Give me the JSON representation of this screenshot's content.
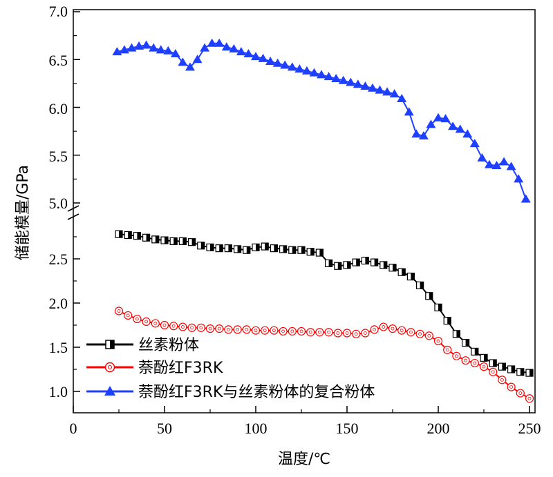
{
  "chart_data": {
    "type": "line",
    "xlabel": "温度/℃",
    "ylabel": "储能模量/GPa",
    "xlim": [
      0,
      250
    ],
    "x_ticks": [
      "0",
      "50",
      "100",
      "150",
      "200",
      "250"
    ],
    "y_lower_range": [
      0.8,
      2.9
    ],
    "y_lower_ticks": [
      "1.0",
      "1.5",
      "2.0",
      "2.5"
    ],
    "y_upper_range": [
      4.95,
      7.0
    ],
    "y_upper_ticks": [
      "5.0",
      "5.5",
      "6.0",
      "6.5",
      "7.0"
    ],
    "legend": [
      "丝素粉体",
      "萘酚红F3RK",
      "萘酚红F3RK与丝素粉体的复合粉体"
    ],
    "series": [
      {
        "name": "丝素粉体",
        "color": "#000000",
        "marker": "half-filled-square",
        "axis": "lower",
        "x": [
          25,
          30,
          35,
          40,
          45,
          50,
          55,
          60,
          65,
          70,
          75,
          80,
          85,
          90,
          95,
          100,
          105,
          110,
          115,
          120,
          125,
          130,
          135,
          140,
          145,
          150,
          155,
          160,
          165,
          170,
          175,
          180,
          185,
          190,
          195,
          200,
          205,
          210,
          215,
          220,
          225,
          230,
          235,
          240,
          245,
          250
        ],
        "values": [
          2.78,
          2.77,
          2.76,
          2.74,
          2.72,
          2.71,
          2.7,
          2.7,
          2.69,
          2.65,
          2.63,
          2.62,
          2.62,
          2.61,
          2.6,
          2.63,
          2.64,
          2.62,
          2.61,
          2.6,
          2.6,
          2.58,
          2.57,
          2.45,
          2.42,
          2.43,
          2.46,
          2.48,
          2.46,
          2.43,
          2.4,
          2.35,
          2.3,
          2.2,
          2.08,
          1.95,
          1.8,
          1.65,
          1.55,
          1.45,
          1.38,
          1.32,
          1.28,
          1.25,
          1.22,
          1.21
        ]
      },
      {
        "name": "萘酚红F3RK",
        "color": "#ff0000",
        "marker": "open-circle",
        "axis": "lower",
        "x": [
          25,
          30,
          35,
          40,
          45,
          50,
          55,
          60,
          65,
          70,
          75,
          80,
          85,
          90,
          95,
          100,
          105,
          110,
          115,
          120,
          125,
          130,
          135,
          140,
          145,
          150,
          155,
          160,
          165,
          170,
          175,
          180,
          185,
          190,
          195,
          200,
          205,
          210,
          215,
          220,
          225,
          230,
          235,
          240,
          245,
          250
        ],
        "values": [
          1.91,
          1.86,
          1.82,
          1.79,
          1.77,
          1.75,
          1.74,
          1.73,
          1.72,
          1.72,
          1.71,
          1.71,
          1.7,
          1.7,
          1.7,
          1.69,
          1.69,
          1.69,
          1.68,
          1.68,
          1.68,
          1.67,
          1.67,
          1.67,
          1.66,
          1.66,
          1.65,
          1.66,
          1.7,
          1.73,
          1.71,
          1.69,
          1.67,
          1.65,
          1.63,
          1.57,
          1.47,
          1.4,
          1.35,
          1.32,
          1.28,
          1.22,
          1.13,
          1.05,
          0.98,
          0.92
        ]
      },
      {
        "name": "萘酚红F3RK与丝素粉体的复合粉体",
        "color": "#1f3fff",
        "marker": "filled-triangle",
        "axis": "upper",
        "x": [
          24,
          28,
          32,
          36,
          40,
          44,
          48,
          52,
          56,
          60,
          64,
          68,
          72,
          76,
          80,
          84,
          88,
          92,
          96,
          100,
          104,
          108,
          112,
          116,
          120,
          124,
          128,
          132,
          136,
          140,
          144,
          148,
          152,
          156,
          160,
          164,
          168,
          172,
          176,
          180,
          184,
          188,
          192,
          196,
          200,
          204,
          208,
          212,
          216,
          220,
          224,
          228,
          232,
          236,
          240,
          244,
          248
        ],
        "values": [
          6.58,
          6.6,
          6.62,
          6.64,
          6.65,
          6.62,
          6.6,
          6.59,
          6.56,
          6.47,
          6.42,
          6.5,
          6.62,
          6.67,
          6.67,
          6.63,
          6.61,
          6.58,
          6.56,
          6.53,
          6.51,
          6.48,
          6.46,
          6.44,
          6.42,
          6.4,
          6.38,
          6.36,
          6.34,
          6.32,
          6.3,
          6.28,
          6.26,
          6.24,
          6.22,
          6.2,
          6.18,
          6.16,
          6.14,
          6.09,
          5.95,
          5.72,
          5.7,
          5.82,
          5.89,
          5.88,
          5.8,
          5.77,
          5.72,
          5.62,
          5.47,
          5.4,
          5.39,
          5.43,
          5.38,
          5.25,
          5.04
        ]
      }
    ]
  }
}
